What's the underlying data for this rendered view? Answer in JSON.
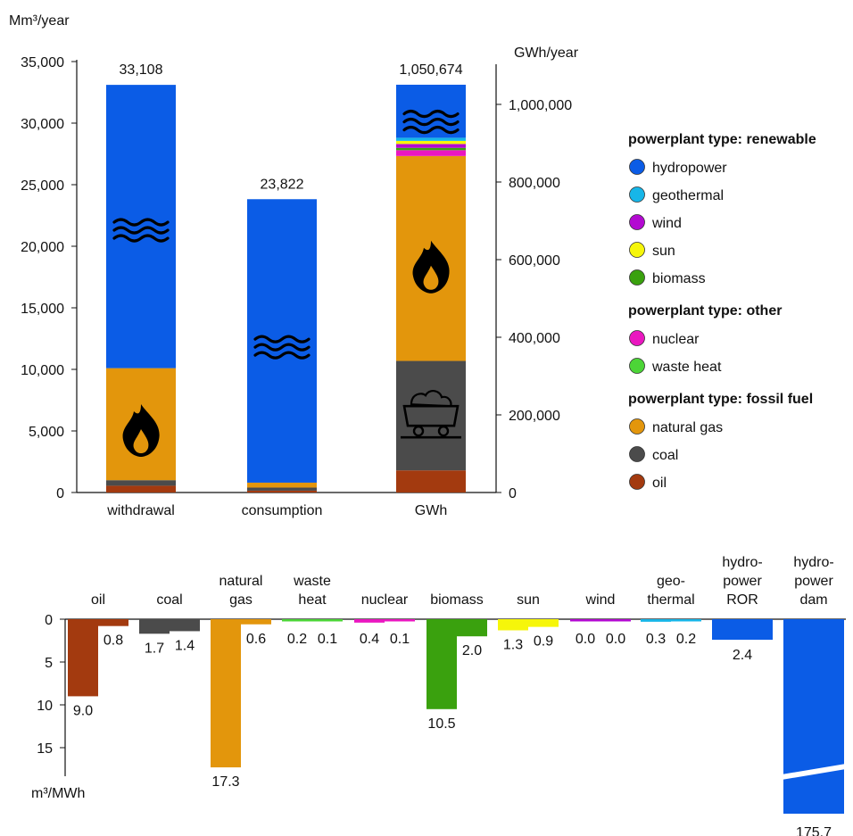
{
  "chart_data": [
    {
      "type": "bar",
      "stacked": true,
      "left_axis_label": "Mm³/year",
      "right_axis_label": "GWh/year",
      "left_ylim": [
        0,
        35000
      ],
      "right_ylim": [
        0,
        1050674
      ],
      "left_ticks": [
        "35,000",
        "30,000",
        "25,000",
        "20,000",
        "15,000",
        "10,000",
        "5,000",
        "0"
      ],
      "right_ticks": [
        "1,000,000",
        "800,000",
        "600,000",
        "400,000",
        "200,000",
        "0"
      ],
      "categories": [
        "withdrawal",
        "consumption",
        "GWh"
      ],
      "totals": [
        "33,108",
        "23,822",
        "1,050,674"
      ],
      "bars": [
        {
          "category": "withdrawal",
          "axis": "left",
          "total": 33108,
          "segments": [
            {
              "type": "oil",
              "value": 550
            },
            {
              "type": "coal",
              "value": 450
            },
            {
              "type": "natural gas",
              "value": 9100
            },
            {
              "type": "hydropower",
              "value": 23008
            }
          ]
        },
        {
          "category": "consumption",
          "axis": "left",
          "total": 23822,
          "segments": [
            {
              "type": "oil",
              "value": 150
            },
            {
              "type": "coal",
              "value": 250
            },
            {
              "type": "natural gas",
              "value": 400
            },
            {
              "type": "hydropower",
              "value": 23022
            }
          ]
        },
        {
          "category": "GWh",
          "axis": "right",
          "total": 1050674,
          "segments": [
            {
              "type": "oil",
              "value": 57000
            },
            {
              "type": "coal",
              "value": 282000
            },
            {
              "type": "natural gas",
              "value": 528000
            },
            {
              "type": "nuclear",
              "value": 15000
            },
            {
              "type": "biomass",
              "value": 6000
            },
            {
              "type": "wind",
              "value": 10000
            },
            {
              "type": "sun",
              "value": 8000
            },
            {
              "type": "geothermal",
              "value": 8000
            },
            {
              "type": "hydropower",
              "value": 136674
            }
          ]
        }
      ],
      "icons": [
        {
          "category": "withdrawal",
          "icon": "water-waves-icon",
          "y_value": 21300
        },
        {
          "category": "withdrawal",
          "icon": "flame-icon",
          "y_value": 5000
        },
        {
          "category": "consumption",
          "icon": "water-waves-icon",
          "y_value": 11800
        },
        {
          "category": "GWh",
          "icon": "water-waves-icon",
          "y_value": 955000
        },
        {
          "category": "GWh",
          "icon": "flame-icon",
          "y_value": 580000
        },
        {
          "category": "GWh",
          "icon": "coal-cart-icon",
          "y_value": 195000
        }
      ]
    },
    {
      "type": "bar",
      "inverted_y": true,
      "ylabel": "m³/MWh",
      "ylim": [
        0,
        18.5
      ],
      "y_ticks": [
        "0",
        "5",
        "10",
        "15"
      ],
      "groups": [
        {
          "label": [
            "oil"
          ],
          "color": "#a33a0f",
          "values": [
            9.0,
            0.8
          ],
          "labels": [
            "9.0",
            "0.8"
          ]
        },
        {
          "label": [
            "coal"
          ],
          "color": "#4b4b4b",
          "values": [
            1.7,
            1.4
          ],
          "labels": [
            "1.7",
            "1.4"
          ]
        },
        {
          "label": [
            "natural",
            "gas"
          ],
          "color": "#e3960c",
          "values": [
            17.3,
            0.6
          ],
          "labels": [
            "17.3",
            "0.6"
          ]
        },
        {
          "label": [
            "waste",
            "heat"
          ],
          "color": "#4cd537",
          "values": [
            0.2,
            0.1
          ],
          "labels": [
            "0.2",
            "0.1"
          ]
        },
        {
          "label": [
            "nuclear"
          ],
          "color": "#ea17c0",
          "values": [
            0.4,
            0.1
          ],
          "labels": [
            "0.4",
            "0.1"
          ]
        },
        {
          "label": [
            "biomass"
          ],
          "color": "#3aa10e",
          "values": [
            10.5,
            2.0
          ],
          "labels": [
            "10.5",
            "2.0"
          ]
        },
        {
          "label": [
            "sun"
          ],
          "color": "#f6f60a",
          "values": [
            1.3,
            0.9
          ],
          "labels": [
            "1.3",
            "0.9"
          ]
        },
        {
          "label": [
            "wind"
          ],
          "color": "#b30ad1",
          "values": [
            0.0,
            0.0
          ],
          "labels": [
            "0.0",
            "0.0"
          ]
        },
        {
          "label": [
            "geo-",
            "thermal"
          ],
          "color": "#17b6e8",
          "values": [
            0.3,
            0.2
          ],
          "labels": [
            "0.3",
            "0.2"
          ]
        },
        {
          "label": [
            "hydro-",
            "power",
            "ROR"
          ],
          "color": "#0b5ce6",
          "values": [
            2.4
          ],
          "labels": [
            "2.4"
          ]
        },
        {
          "label": [
            "hydro-",
            "power",
            "dam"
          ],
          "color": "#0b5ce6",
          "values": [
            175.7
          ],
          "labels": [
            "175.7"
          ],
          "broken": true
        }
      ]
    }
  ],
  "legend": {
    "sections": [
      {
        "heading": "powerplant type: renewable",
        "items": [
          {
            "label": "hydropower",
            "color": "#0b5ce6"
          },
          {
            "label": "geothermal",
            "color": "#17b6e8"
          },
          {
            "label": "wind",
            "color": "#b30ad1"
          },
          {
            "label": "sun",
            "color": "#f6f60a"
          },
          {
            "label": "biomass",
            "color": "#3aa10e"
          }
        ]
      },
      {
        "heading": "powerplant type: other",
        "items": [
          {
            "label": "nuclear",
            "color": "#ea17c0"
          },
          {
            "label": "waste heat",
            "color": "#4cd537"
          }
        ]
      },
      {
        "heading": "powerplant type: fossil fuel",
        "items": [
          {
            "label": "natural gas",
            "color": "#e3960c"
          },
          {
            "label": "coal",
            "color": "#4b4b4b"
          },
          {
            "label": "oil",
            "color": "#a33a0f"
          }
        ]
      }
    ]
  },
  "colors": {
    "oil": "#a33a0f",
    "coal": "#4b4b4b",
    "natural gas": "#e3960c",
    "hydropower": "#0b5ce6",
    "geothermal": "#17b6e8",
    "wind": "#b30ad1",
    "sun": "#f6f60a",
    "biomass": "#3aa10e",
    "nuclear": "#ea17c0",
    "waste heat": "#4cd537"
  }
}
